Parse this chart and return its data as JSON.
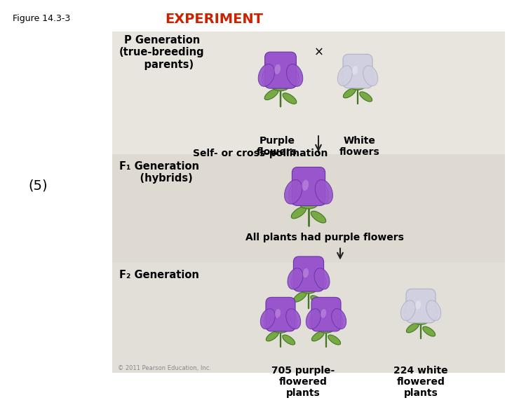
{
  "figure_label": "Figure 14.3-3",
  "title": "EXPERIMENT",
  "title_color": "#cc2200",
  "background_color": "#ffffff",
  "panel_bg_top": "#e8e5de",
  "panel_bg_mid": "#dedad2",
  "panel_bg_bot": "#e2dfd8",
  "p_gen_label": "P Generation\n(true-breeding\n    parents)",
  "f1_gen_label": "F₁ Generation\n    (hybrids)",
  "f2_gen_label": "F₂ Generation",
  "purple_label": "Purple\nflowers",
  "white_label": "White\nflowers",
  "cross_symbol": "×",
  "f1_result": "All plants had purple flowers",
  "pollination": "Self- or cross-pollination",
  "purple_count": "705 purple-\nflowered\nplants",
  "white_count": "224 white\nflowered\nplants",
  "copyright": "© 2011 Pearson Education, Inc.",
  "five_label": "(5)",
  "purple_light": "#c090e0",
  "purple_mid": "#9955cc",
  "purple_dark": "#6633aa",
  "white_light": "#e8e8f0",
  "white_mid": "#d0d0e0",
  "white_dark": "#b0b0c8",
  "green_light": "#77aa44",
  "green_dark": "#447722",
  "arrow_color": "#222222",
  "text_color": "#000000",
  "label_fontsize": 10.5,
  "sublabel_fontsize": 10,
  "fig_fontsize": 9
}
